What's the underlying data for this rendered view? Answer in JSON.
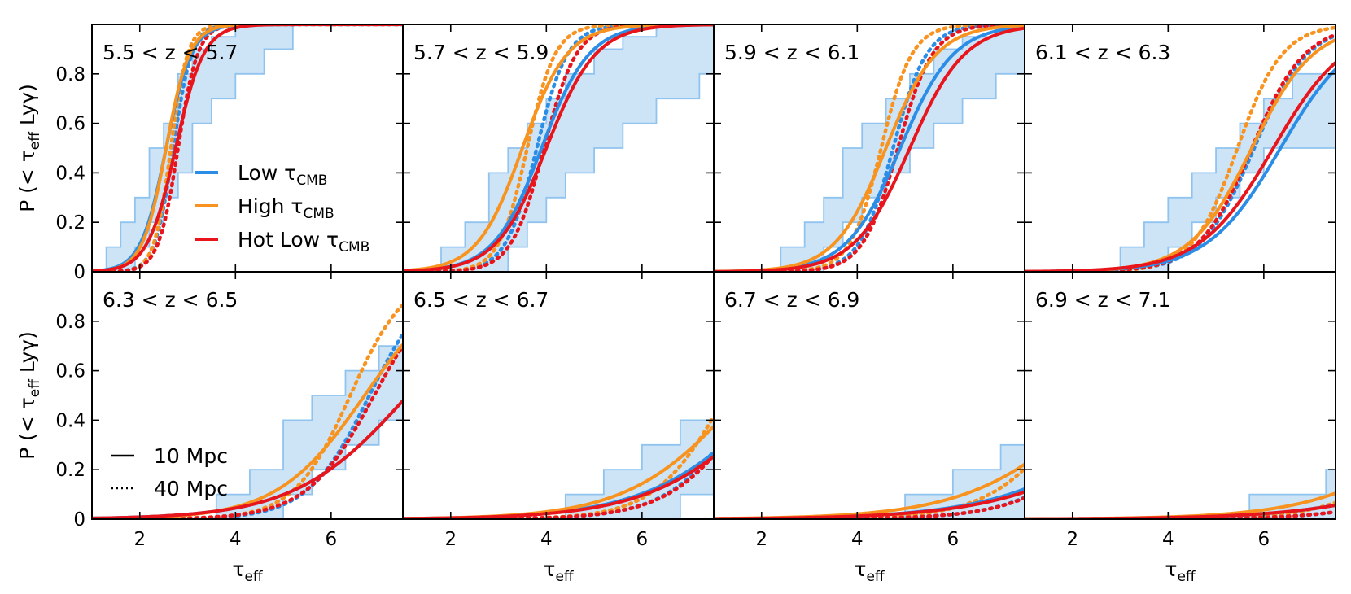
{
  "chart_data": {
    "type": "line",
    "title": "",
    "xlabel": "τ",
    "xlabel_sub": "eff",
    "ylabel_prefix": "P (< τ",
    "ylabel_sub": "eff",
    "ylabel_suffix": " Lyγ)",
    "xlim": [
      1.0,
      7.5
    ],
    "ylim": [
      0,
      1.0
    ],
    "x_ticks": [
      2,
      4,
      6
    ],
    "x_tick_labels": [
      "2",
      "4",
      "6"
    ],
    "y_ticks": [
      0,
      0.2,
      0.4,
      0.6,
      0.8
    ],
    "y_tick_labels": [
      "0",
      "0.2",
      "0.4",
      "0.6",
      "0.8"
    ],
    "colors": {
      "low": "#2b8de6",
      "high": "#f7931e",
      "hot": "#e8161c",
      "band_fill": "#cde4f7",
      "band_edge": "#90c4ef"
    },
    "legend_models": [
      {
        "key": "low",
        "label": "Low τ",
        "sub": "CMB"
      },
      {
        "key": "high",
        "label": "High τ",
        "sub": "CMB"
      },
      {
        "key": "hot",
        "label": "Hot Low τ",
        "sub": "CMB"
      }
    ],
    "legend_styles": [
      {
        "style": "solid",
        "label": "10 Mpc"
      },
      {
        "style": "dotted",
        "label": "40 Mpc"
      }
    ],
    "panels": [
      {
        "label": "5.5 < z < 5.7",
        "band_x": [
          1.3,
          1.6,
          1.9,
          2.2,
          2.5,
          2.8,
          3.1,
          3.5,
          4.0,
          4.6,
          5.2
        ],
        "band_lo": [
          0,
          0,
          0.1,
          0.2,
          0.3,
          0.4,
          0.6,
          0.7,
          0.8,
          0.9,
          1.0
        ],
        "band_hi": [
          0.1,
          0.2,
          0.3,
          0.5,
          0.6,
          0.8,
          0.9,
          0.95,
          1.0,
          1.0,
          1.0
        ],
        "series": [
          {
            "model": "low",
            "style": "solid",
            "median": 2.55,
            "width": 0.45,
            "shape": 0,
            "max": 1.0
          },
          {
            "model": "high",
            "style": "solid",
            "median": 2.55,
            "width": 0.42,
            "shape": 0,
            "max": 1.0
          },
          {
            "model": "hot",
            "style": "solid",
            "median": 2.75,
            "width": 0.5,
            "shape": 0,
            "max": 1.0
          },
          {
            "model": "low",
            "style": "dotted",
            "median": 2.7,
            "width": 0.33,
            "shape": 0,
            "max": 1.0
          },
          {
            "model": "high",
            "style": "dotted",
            "median": 2.65,
            "width": 0.3,
            "shape": 0,
            "max": 1.0
          },
          {
            "model": "hot",
            "style": "dotted",
            "median": 2.8,
            "width": 0.35,
            "shape": 0,
            "max": 1.0
          }
        ]
      },
      {
        "label": "5.7 < z < 5.9",
        "band_x": [
          1.8,
          2.3,
          2.8,
          3.2,
          3.6,
          4.0,
          4.4,
          5.0,
          5.6,
          6.3,
          7.2
        ],
        "band_lo": [
          0,
          0,
          0,
          0.1,
          0.2,
          0.3,
          0.4,
          0.5,
          0.6,
          0.7,
          0.8
        ],
        "band_hi": [
          0.1,
          0.2,
          0.4,
          0.5,
          0.6,
          0.7,
          0.8,
          0.9,
          0.95,
          1.0,
          1.0
        ],
        "series": [
          {
            "model": "low",
            "style": "solid",
            "median": 3.9,
            "width": 0.85,
            "shape": 0.3,
            "max": 1.0
          },
          {
            "model": "high",
            "style": "solid",
            "median": 3.5,
            "width": 0.8,
            "shape": 0.3,
            "max": 1.0
          },
          {
            "model": "hot",
            "style": "solid",
            "median": 4.0,
            "width": 0.88,
            "shape": 0.3,
            "max": 1.0
          },
          {
            "model": "low",
            "style": "dotted",
            "median": 3.8,
            "width": 0.55,
            "shape": 0.1,
            "max": 1.0
          },
          {
            "model": "high",
            "style": "dotted",
            "median": 3.6,
            "width": 0.5,
            "shape": 0.1,
            "max": 1.0
          },
          {
            "model": "hot",
            "style": "dotted",
            "median": 3.95,
            "width": 0.58,
            "shape": 0.1,
            "max": 1.0
          }
        ]
      },
      {
        "label": "5.9 < z < 6.1",
        "band_x": [
          2.4,
          2.9,
          3.3,
          3.7,
          4.1,
          4.6,
          5.1,
          5.6,
          6.2,
          6.9,
          7.5
        ],
        "band_lo": [
          0,
          0,
          0.1,
          0.2,
          0.3,
          0.4,
          0.5,
          0.6,
          0.7,
          0.8,
          0.8
        ],
        "band_hi": [
          0.1,
          0.2,
          0.3,
          0.5,
          0.6,
          0.7,
          0.8,
          0.9,
          0.95,
          1.0,
          1.0
        ],
        "series": [
          {
            "model": "low",
            "style": "solid",
            "median": 4.9,
            "width": 0.95,
            "shape": 0.3,
            "max": 1.0
          },
          {
            "model": "high",
            "style": "solid",
            "median": 4.6,
            "width": 0.9,
            "shape": 0.3,
            "max": 1.0
          },
          {
            "model": "hot",
            "style": "solid",
            "median": 5.1,
            "width": 0.98,
            "shape": 0.3,
            "max": 1.0
          },
          {
            "model": "low",
            "style": "dotted",
            "median": 4.75,
            "width": 0.6,
            "shape": 0.1,
            "max": 1.0
          },
          {
            "model": "high",
            "style": "dotted",
            "median": 4.5,
            "width": 0.55,
            "shape": 0.1,
            "max": 1.0
          },
          {
            "model": "hot",
            "style": "dotted",
            "median": 4.85,
            "width": 0.62,
            "shape": 0.1,
            "max": 1.0
          }
        ]
      },
      {
        "label": "6.1 < z < 6.3",
        "band_x": [
          3.0,
          3.5,
          4.0,
          4.5,
          5.0,
          5.5,
          6.0,
          6.6,
          7.2
        ],
        "band_lo": [
          0,
          0,
          0.1,
          0.2,
          0.3,
          0.4,
          0.5,
          0.5,
          0.5
        ],
        "band_hi": [
          0.1,
          0.2,
          0.3,
          0.4,
          0.5,
          0.6,
          0.7,
          0.8,
          0.8
        ],
        "series": [
          {
            "model": "low",
            "style": "solid",
            "median": 6.35,
            "width": 1.3,
            "shape": 0.3,
            "max": 1.0
          },
          {
            "model": "high",
            "style": "solid",
            "median": 5.75,
            "width": 1.1,
            "shape": 0.3,
            "max": 1.0
          },
          {
            "model": "hot",
            "style": "solid",
            "median": 6.2,
            "width": 1.3,
            "shape": 0.3,
            "max": 1.0
          },
          {
            "model": "low",
            "style": "dotted",
            "median": 5.8,
            "width": 0.95,
            "shape": 0.2,
            "max": 1.0
          },
          {
            "model": "high",
            "style": "dotted",
            "median": 5.45,
            "width": 0.8,
            "shape": 0.2,
            "max": 1.0
          },
          {
            "model": "hot",
            "style": "dotted",
            "median": 5.75,
            "width": 0.95,
            "shape": 0.2,
            "max": 1.0
          }
        ]
      },
      {
        "label": "6.3 < z < 6.5",
        "band_x": [
          3.6,
          4.3,
          5.0,
          5.6,
          6.3,
          7.0
        ],
        "band_lo": [
          0,
          0,
          0.1,
          0.2,
          0.3,
          0.4
        ],
        "band_hi": [
          0.1,
          0.2,
          0.4,
          0.5,
          0.6,
          0.7
        ],
        "series": [
          {
            "model": "low",
            "style": "solid",
            "median": 7.6,
            "width": 2.0,
            "shape": 0.3,
            "max": 1.0
          },
          {
            "model": "high",
            "style": "solid",
            "median": 6.7,
            "width": 1.55,
            "shape": 0.3,
            "max": 1.0
          },
          {
            "model": "hot",
            "style": "solid",
            "median": 7.6,
            "width": 2.0,
            "shape": 0.3,
            "max": 1.0
          },
          {
            "model": "low",
            "style": "dotted",
            "median": 6.8,
            "width": 1.1,
            "shape": 0.2,
            "max": 1.0
          },
          {
            "model": "high",
            "style": "dotted",
            "median": 6.4,
            "width": 1.0,
            "shape": 0.2,
            "max": 1.0
          },
          {
            "model": "hot",
            "style": "dotted",
            "median": 6.9,
            "width": 1.2,
            "shape": 0.2,
            "max": 1.0
          }
        ]
      },
      {
        "label": "6.5 < z < 6.7",
        "band_x": [
          4.4,
          5.2,
          6.0,
          6.8,
          7.5
        ],
        "band_lo": [
          0,
          0,
          0,
          0.1,
          0.1
        ],
        "band_hi": [
          0.1,
          0.2,
          0.3,
          0.4,
          0.5
        ],
        "series": [
          {
            "model": "low",
            "style": "solid",
            "median": 8.8,
            "width": 2.2,
            "shape": 0.2,
            "max": 1.0
          },
          {
            "model": "high",
            "style": "solid",
            "median": 8.1,
            "width": 2.0,
            "shape": 0.2,
            "max": 1.0
          },
          {
            "model": "hot",
            "style": "solid",
            "median": 8.9,
            "width": 2.2,
            "shape": 0.2,
            "max": 1.0
          },
          {
            "model": "low",
            "style": "dotted",
            "median": 8.3,
            "width": 1.4,
            "shape": 0.15,
            "max": 1.0
          },
          {
            "model": "high",
            "style": "dotted",
            "median": 7.75,
            "width": 1.25,
            "shape": 0.15,
            "max": 1.0
          },
          {
            "model": "hot",
            "style": "dotted",
            "median": 8.4,
            "width": 1.45,
            "shape": 0.15,
            "max": 1.0
          }
        ]
      },
      {
        "label": "6.7 < z < 6.9",
        "band_x": [
          5.0,
          6.0,
          7.0,
          7.5
        ],
        "band_lo": [
          0,
          0,
          0,
          0
        ],
        "band_hi": [
          0.1,
          0.2,
          0.3,
          0.3
        ],
        "series": [
          {
            "model": "low",
            "style": "solid",
            "median": 10.4,
            "width": 2.5,
            "shape": 0.1,
            "max": 1.0
          },
          {
            "model": "high",
            "style": "solid",
            "median": 9.2,
            "width": 2.3,
            "shape": 0.1,
            "max": 1.0
          },
          {
            "model": "hot",
            "style": "solid",
            "median": 10.7,
            "width": 2.6,
            "shape": 0.1,
            "max": 1.0
          },
          {
            "model": "low",
            "style": "dotted",
            "median": 9.7,
            "width": 1.6,
            "shape": 0.1,
            "max": 1.0
          },
          {
            "model": "high",
            "style": "dotted",
            "median": 8.7,
            "width": 1.5,
            "shape": 0.1,
            "max": 1.0
          },
          {
            "model": "hot",
            "style": "dotted",
            "median": 9.8,
            "width": 1.65,
            "shape": 0.1,
            "max": 1.0
          }
        ]
      },
      {
        "label": "6.9 < z < 7.1",
        "band_x": [
          5.7,
          6.5,
          7.3
        ],
        "band_lo": [
          0,
          0,
          0
        ],
        "band_hi": [
          0.1,
          0.1,
          0.2
        ],
        "series": [
          {
            "model": "low",
            "style": "solid",
            "median": 11.8,
            "width": 2.6,
            "shape": 0.1,
            "max": 1.0
          },
          {
            "model": "high",
            "style": "solid",
            "median": 10.4,
            "width": 2.3,
            "shape": 0.1,
            "max": 1.0
          },
          {
            "model": "hot",
            "style": "solid",
            "median": 11.9,
            "width": 2.65,
            "shape": 0.1,
            "max": 1.0
          },
          {
            "model": "low",
            "style": "dotted",
            "median": 11.0,
            "width": 1.7,
            "shape": 0.1,
            "max": 1.0
          },
          {
            "model": "high",
            "style": "dotted",
            "median": 9.9,
            "width": 1.55,
            "shape": 0.1,
            "max": 1.0
          },
          {
            "model": "hot",
            "style": "dotted",
            "median": 11.1,
            "width": 1.75,
            "shape": 0.1,
            "max": 1.0
          }
        ]
      }
    ]
  }
}
